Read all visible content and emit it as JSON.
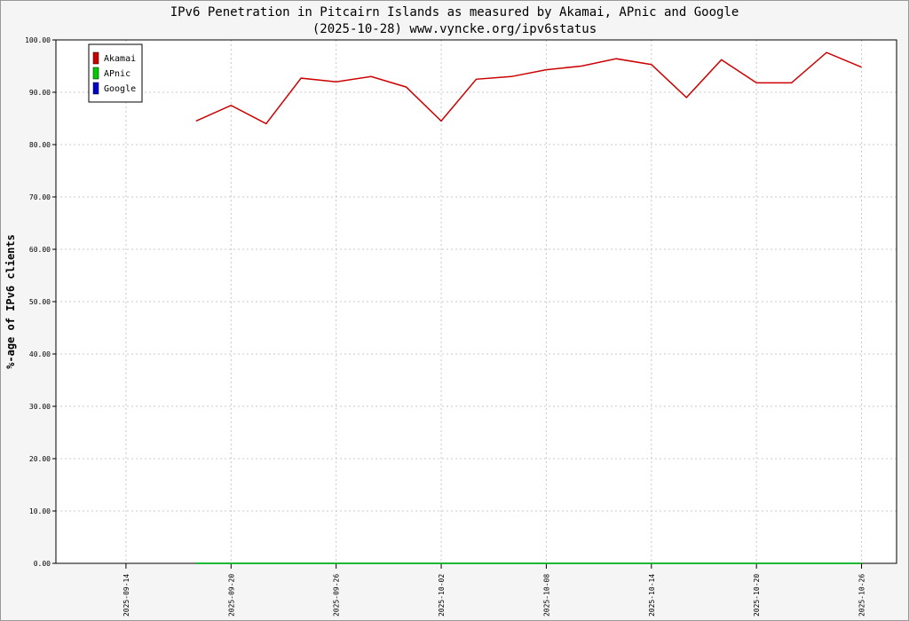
{
  "chart_data": {
    "type": "line",
    "title": "IPv6 Penetration in Pitcairn Islands as measured by Akamai, APnic and Google",
    "subtitle": "(2025-10-28) www.vyncke.org/ipv6status",
    "y_label": "%-age of IPv6 clients",
    "x": [
      "2025-09-18",
      "2025-09-20",
      "2025-09-22",
      "2025-09-24",
      "2025-09-26",
      "2025-09-28",
      "2025-09-30",
      "2025-10-02",
      "2025-10-04",
      "2025-10-06",
      "2025-10-08",
      "2025-10-10",
      "2025-10-12",
      "2025-10-14",
      "2025-10-16",
      "2025-10-18",
      "2025-10-20",
      "2025-10-22",
      "2025-10-24",
      "2025-10-26"
    ],
    "series": [
      {
        "name": "Akamai",
        "color": "#cc0000",
        "values": [
          84.5,
          87.5,
          84.0,
          92.7,
          92.0,
          93.0,
          91.0,
          84.5,
          92.5,
          93.0,
          94.3,
          95.0,
          96.4,
          95.3,
          89.0,
          96.2,
          91.8,
          91.8,
          97.6,
          94.8
        ]
      },
      {
        "name": "APnic",
        "color": "#00cc00",
        "values": [
          0,
          0,
          0,
          0,
          0,
          0,
          0,
          0,
          0,
          0,
          0,
          0,
          0,
          0,
          0,
          0,
          0,
          0,
          0,
          0
        ]
      },
      {
        "name": "Google",
        "color": "#0000cc",
        "values": [
          0,
          0,
          0,
          0,
          0,
          0,
          0,
          0,
          0,
          0,
          0,
          0,
          0,
          0,
          0,
          0,
          0,
          0,
          0,
          0
        ]
      }
    ],
    "xlim": [
      "2025-09-10",
      "2025-10-28"
    ],
    "xticks": [
      "2025-09-14",
      "2025-09-20",
      "2025-09-26",
      "2025-10-02",
      "2025-10-08",
      "2025-10-14",
      "2025-10-20",
      "2025-10-26"
    ],
    "ylim": [
      0,
      100
    ],
    "yticks": [
      {
        "value": 0,
        "label": "0.00"
      },
      {
        "value": 10,
        "label": "10.00"
      },
      {
        "value": 20,
        "label": "20.00"
      },
      {
        "value": 30,
        "label": "30.00"
      },
      {
        "value": 40,
        "label": "40.00"
      },
      {
        "value": 50,
        "label": "50.00"
      },
      {
        "value": 60,
        "label": "60.00"
      },
      {
        "value": 70,
        "label": "70.00"
      },
      {
        "value": 80,
        "label": "80.00"
      },
      {
        "value": 90,
        "label": "90.00"
      },
      {
        "value": 100,
        "label": "100.00"
      }
    ],
    "grid": true,
    "legend": "upper left"
  }
}
